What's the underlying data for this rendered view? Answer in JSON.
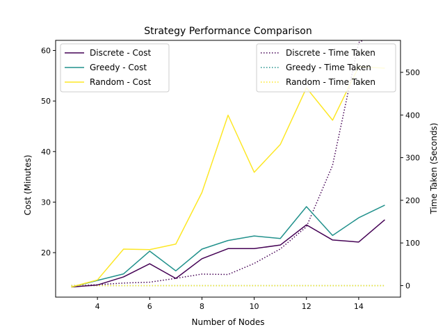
{
  "chart_data": {
    "type": "line",
    "title": "Strategy Performance Comparison",
    "xlabel": "Number of Nodes",
    "ylabel_left": "Cost (Minutes)",
    "ylabel_right": "Time Taken (Seconds)",
    "xlim": [
      2.4,
      15.6
    ],
    "ylim_left": [
      11.2,
      62.0
    ],
    "ylim_right": [
      -27,
      575
    ],
    "x_ticks": [
      4,
      6,
      8,
      10,
      12,
      14
    ],
    "y_ticks_left": [
      20,
      30,
      40,
      50,
      60
    ],
    "y_ticks_right": [
      0,
      100,
      200,
      300,
      400,
      500
    ],
    "x": [
      3,
      4,
      5,
      6,
      7,
      8,
      9,
      10,
      11,
      12,
      13,
      14,
      15
    ],
    "cost_series": [
      {
        "name": "Discrete - Cost",
        "color": "#440154",
        "axis": "left",
        "style": "solid",
        "values": [
          13.2,
          13.6,
          15.2,
          17.8,
          14.9,
          18.8,
          20.8,
          20.8,
          21.5,
          25.5,
          22.5,
          22.1,
          26.5
        ]
      },
      {
        "name": "Greedy - Cost",
        "color": "#21918c",
        "axis": "left",
        "style": "solid",
        "values": [
          13.2,
          14.5,
          15.8,
          20.3,
          16.4,
          20.7,
          22.4,
          23.3,
          22.8,
          29.1,
          23.4,
          26.9,
          29.4
        ]
      },
      {
        "name": "Random - Cost",
        "color": "#fde725",
        "axis": "left",
        "style": "solid",
        "values": [
          13.2,
          14.6,
          20.7,
          20.6,
          21.7,
          31.9,
          47.2,
          35.9,
          41.4,
          52.6,
          46.2,
          56.8,
          56.5
        ]
      }
    ],
    "time_series": [
      {
        "name": "Discrete - Time Taken",
        "color": "#440154",
        "axis": "right",
        "style": "dotted",
        "values": [
          0.1,
          2,
          6,
          8,
          17,
          27,
          26,
          52,
          86,
          138,
          282,
          570,
          600
        ]
      },
      {
        "name": "Greedy - Time Taken",
        "color": "#21918c",
        "axis": "right",
        "style": "dotted",
        "values": [
          0,
          0,
          0,
          0,
          0,
          0,
          0,
          0,
          0,
          0,
          0,
          0,
          0
        ]
      },
      {
        "name": "Random - Time Taken",
        "color": "#fde725",
        "axis": "right",
        "style": "dotted",
        "values": [
          0,
          0,
          0,
          0,
          0,
          0,
          0,
          0,
          0,
          0,
          0,
          0,
          0
        ]
      }
    ],
    "legend_left_position": "upper-left",
    "legend_right_position": "upper-right",
    "grid": false
  }
}
